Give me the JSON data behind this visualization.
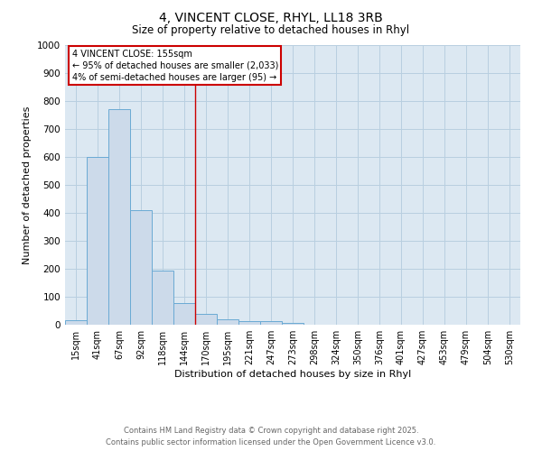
{
  "title_line1": "4, VINCENT CLOSE, RHYL, LL18 3RB",
  "title_line2": "Size of property relative to detached houses in Rhyl",
  "xlabel": "Distribution of detached houses by size in Rhyl",
  "ylabel": "Number of detached properties",
  "categories": [
    "15sqm",
    "41sqm",
    "67sqm",
    "92sqm",
    "118sqm",
    "144sqm",
    "170sqm",
    "195sqm",
    "221sqm",
    "247sqm",
    "273sqm",
    "298sqm",
    "324sqm",
    "350sqm",
    "376sqm",
    "401sqm",
    "427sqm",
    "453sqm",
    "479sqm",
    "504sqm",
    "530sqm"
  ],
  "values": [
    15,
    600,
    770,
    410,
    193,
    76,
    38,
    18,
    13,
    13,
    8,
    0,
    0,
    0,
    0,
    0,
    0,
    0,
    0,
    0,
    0
  ],
  "bar_color": "#ccdaea",
  "bar_edge_color": "#6aaad4",
  "annotation_text_line1": "4 VINCENT CLOSE: 155sqm",
  "annotation_text_line2": "← 95% of detached houses are smaller (2,033)",
  "annotation_text_line3": "4% of semi-detached houses are larger (95) →",
  "annotation_box_color": "#ffffff",
  "annotation_box_edge_color": "#cc0000",
  "vline_color": "#cc0000",
  "grid_color": "#b8cfe0",
  "background_color": "#dce8f2",
  "ylim": [
    0,
    1000
  ],
  "yticks": [
    0,
    100,
    200,
    300,
    400,
    500,
    600,
    700,
    800,
    900,
    1000
  ],
  "footer_line1": "Contains HM Land Registry data © Crown copyright and database right 2025.",
  "footer_line2": "Contains public sector information licensed under the Open Government Licence v3.0."
}
